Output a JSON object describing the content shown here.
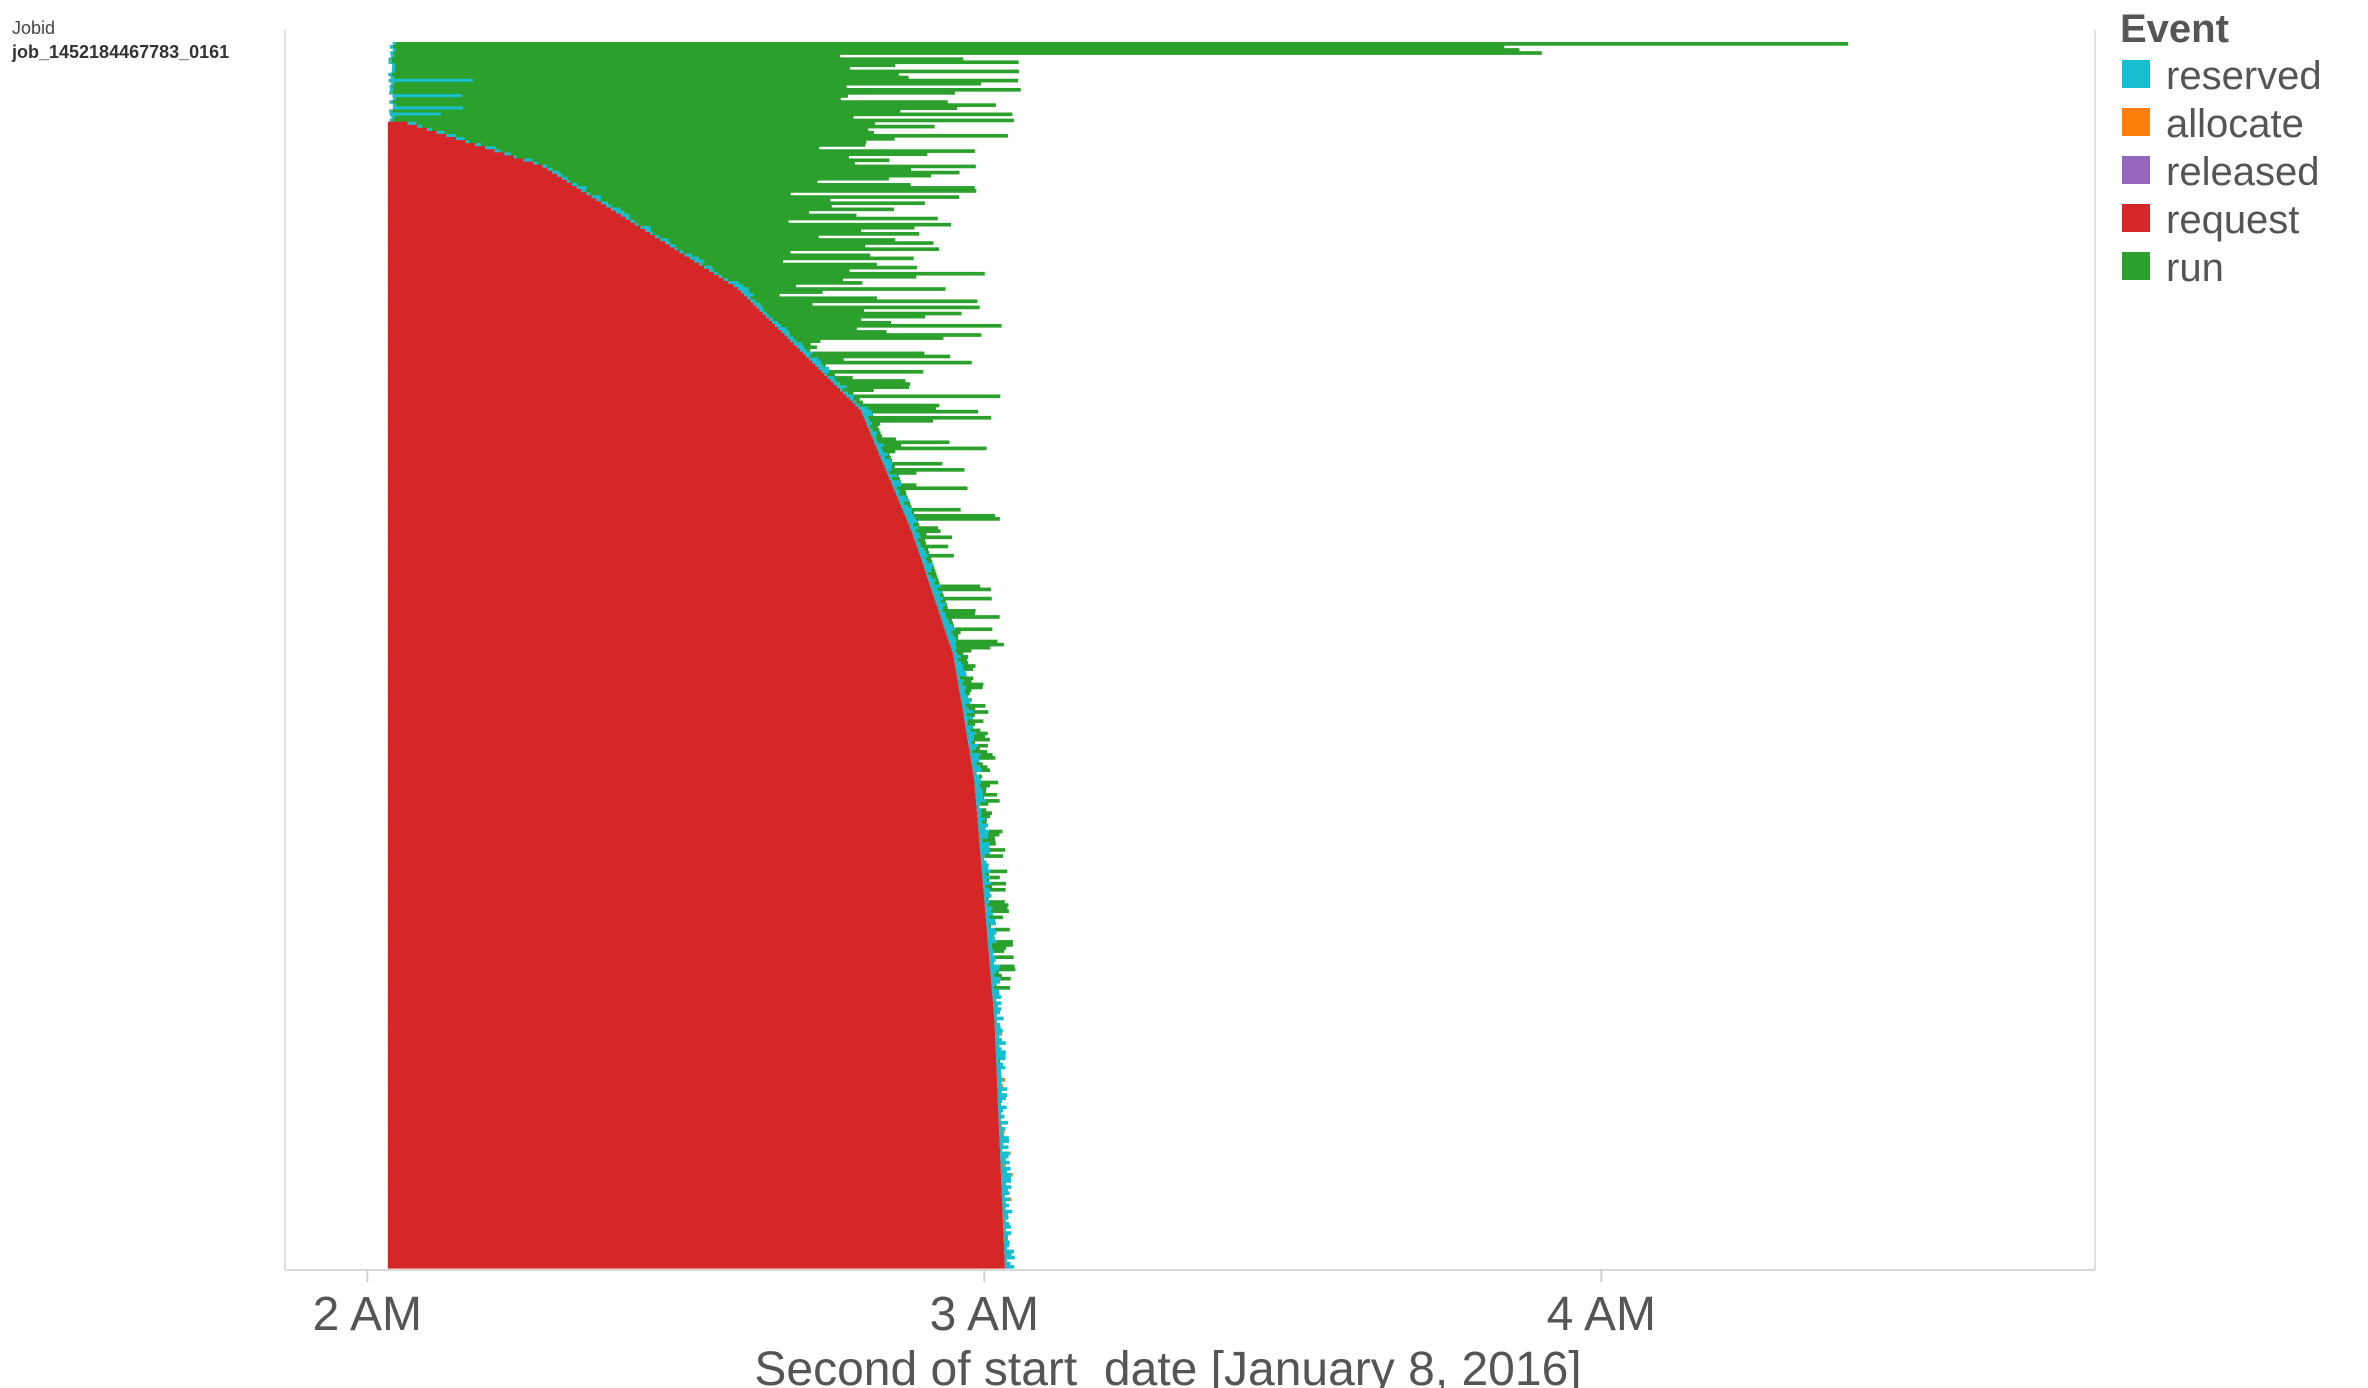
{
  "chart_data": {
    "type": "gantt",
    "row_field": "Jobid",
    "first_row_label": "job_1452184467783_0161",
    "xlabel": "Second of start_date [January 8, 2016]",
    "x_ticks": [
      "2 AM",
      "3 AM",
      "4 AM"
    ],
    "xlim": [
      "01:52",
      "04:48"
    ],
    "legend": {
      "title": "Event",
      "placement": "right",
      "items": [
        {
          "name": "reserved",
          "color": "#17becf"
        },
        {
          "name": "allocate",
          "color": "#ff7f0e"
        },
        {
          "name": "released",
          "color": "#9467bd"
        },
        {
          "name": "request",
          "color": "#d62728"
        },
        {
          "name": "run",
          "color": "#2ca02c"
        }
      ]
    },
    "request_start": "02:02",
    "request_end_curve": [
      {
        "row_fraction": 0.0,
        "time": "02:02"
      },
      {
        "row_fraction": 0.06,
        "time": "02:02"
      },
      {
        "row_fraction": 0.1,
        "time": "02:17"
      },
      {
        "row_fraction": 0.2,
        "time": "02:36"
      },
      {
        "row_fraction": 0.3,
        "time": "02:48"
      },
      {
        "row_fraction": 0.4,
        "time": "02:53"
      },
      {
        "row_fraction": 0.5,
        "time": "02:57"
      },
      {
        "row_fraction": 0.6,
        "time": "02:59"
      },
      {
        "row_fraction": 0.7,
        "time": "03:00"
      },
      {
        "row_fraction": 0.8,
        "time": "03:01"
      },
      {
        "row_fraction": 1.0,
        "time": "03:02"
      }
    ],
    "longest_run_end": "04:24"
  }
}
